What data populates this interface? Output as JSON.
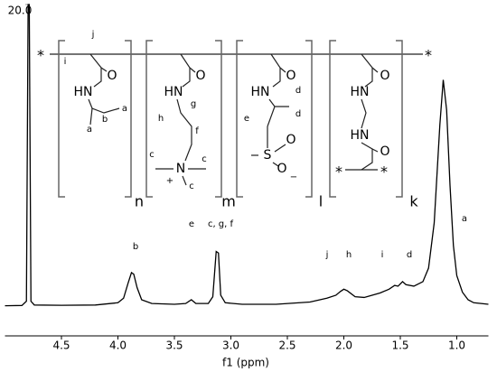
{
  "chart_data": {
    "type": "line",
    "x_label": "f1 (ppm)",
    "color": "#000000",
    "xlim": [
      5.0,
      0.72
    ],
    "xticks": [
      4.5,
      {
        "value": 4.0,
        "label": "4.0"
      },
      3.5,
      {
        "value": 3.0,
        "label": "3.0"
      },
      2.5,
      {
        "value": 2.0,
        "label": "2.0"
      },
      1.5,
      {
        "value": 1.0,
        "label": "1.0"
      }
    ],
    "ylim": [
      -2,
      20
    ],
    "yticks": [
      {
        "value": 20,
        "label": "20.0"
      }
    ],
    "x": [
      5.0,
      4.85,
      4.81,
      4.795,
      4.785,
      4.77,
      4.74,
      4.5,
      4.2,
      4.0,
      3.95,
      3.91,
      3.88,
      3.86,
      3.83,
      3.79,
      3.7,
      3.5,
      3.4,
      3.35,
      3.31,
      3.2,
      3.16,
      3.13,
      3.11,
      3.09,
      3.05,
      2.9,
      2.6,
      2.3,
      2.15,
      2.07,
      2.03,
      2.0,
      1.97,
      1.9,
      1.82,
      1.75,
      1.68,
      1.6,
      1.55,
      1.52,
      1.48,
      1.45,
      1.38,
      1.3,
      1.25,
      1.2,
      1.15,
      1.12,
      1.09,
      1.06,
      1.03,
      1.0,
      0.95,
      0.9,
      0.85,
      0.72
    ],
    "values": [
      0,
      0.02,
      0.3,
      20,
      20,
      0.3,
      0.05,
      0.03,
      0.05,
      0.2,
      0.5,
      1.5,
      2.2,
      2.1,
      1.2,
      0.4,
      0.15,
      0.1,
      0.15,
      0.4,
      0.15,
      0.15,
      0.6,
      3.6,
      3.5,
      0.7,
      0.2,
      0.1,
      0.1,
      0.25,
      0.5,
      0.7,
      0.95,
      1.1,
      1.0,
      0.6,
      0.55,
      0.7,
      0.85,
      1.1,
      1.35,
      1.3,
      1.6,
      1.4,
      1.3,
      1.6,
      2.5,
      5.5,
      12,
      15.0,
      13,
      8,
      4,
      2,
      0.9,
      0.4,
      0.2,
      0.1
    ],
    "peak_labels": [
      "a",
      "b",
      "e",
      "c, g, f",
      "j",
      "h",
      "i",
      "d"
    ],
    "structure_labels": [
      "*",
      "j",
      "i",
      "O",
      "HN",
      "b",
      "a",
      "a",
      "n",
      "O",
      "HN",
      "g",
      "h",
      "f",
      "c",
      "N",
      "+",
      "c",
      "c",
      "m",
      "O",
      "HN",
      "d",
      "e",
      "d",
      "S",
      "O",
      "O",
      "−",
      "l",
      "O",
      "HN",
      "HN",
      "O",
      "*",
      "*",
      "k",
      "*"
    ]
  }
}
